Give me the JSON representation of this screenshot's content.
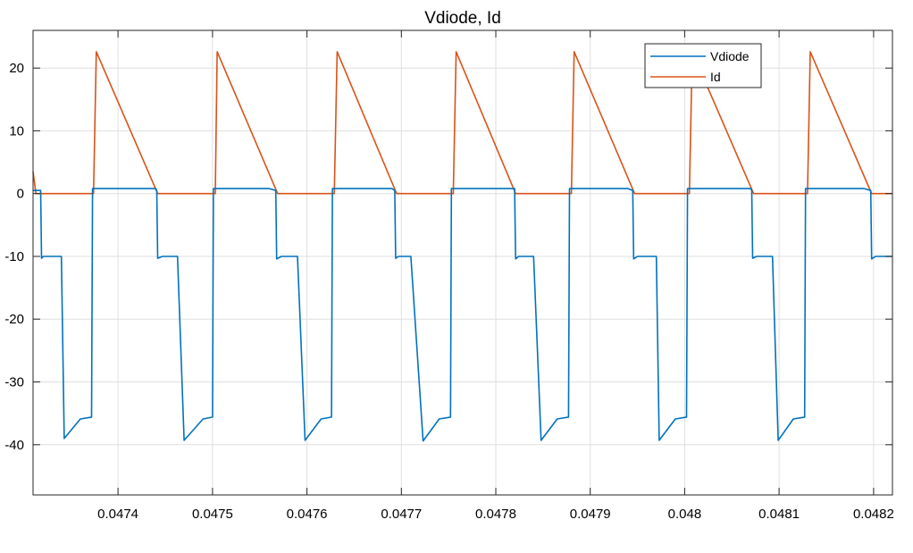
{
  "chart_data": {
    "type": "line",
    "title": "Vdiode, Id",
    "xlabel": "",
    "ylabel": "",
    "xlim": [
      0.04731,
      0.04822
    ],
    "ylim": [
      -48,
      26
    ],
    "grid": true,
    "legend_position": "top-right",
    "x_ticks": [
      0.0474,
      0.0475,
      0.0476,
      0.0477,
      0.0478,
      0.0479,
      0.048,
      0.0481,
      0.0482
    ],
    "x_tick_labels": [
      "0.0474",
      "0.0475",
      "0.0476",
      "0.0477",
      "0.0478",
      "0.0479",
      "0.048",
      "0.0481",
      "0.0482"
    ],
    "y_ticks": [
      20,
      10,
      0,
      -10,
      -20,
      -30,
      -40
    ],
    "y_tick_labels": [
      "20",
      "10",
      "0",
      "-10",
      "-20",
      "-30",
      "-40"
    ],
    "series": [
      {
        "name": "Vdiode",
        "color": "#0072BD",
        "x": [
          0.04731,
          0.047318,
          0.047319,
          0.047321,
          0.04734,
          0.047343,
          0.04736,
          0.047372,
          0.047373,
          0.047377,
          0.04744,
          0.047441,
          0.047442,
          0.047447,
          0.047463,
          0.04747,
          0.04749,
          0.0475,
          0.047501,
          0.047503,
          0.04756,
          0.047567,
          0.047568,
          0.047573,
          0.04759,
          0.047598,
          0.047615,
          0.047626,
          0.047627,
          0.047629,
          0.04769,
          0.047693,
          0.047694,
          0.047697,
          0.04771,
          0.047723,
          0.04774,
          0.047752,
          0.047753,
          0.047755,
          0.04782,
          0.04782,
          0.047821,
          0.047824,
          0.04784,
          0.047848,
          0.047865,
          0.047877,
          0.047878,
          0.04788,
          0.04794,
          0.047945,
          0.047946,
          0.04795,
          0.04797,
          0.047973,
          0.04799,
          0.048002,
          0.048003,
          0.048005,
          0.04807,
          0.048071,
          0.048072,
          0.048076,
          0.048093,
          0.048099,
          0.048115,
          0.048127,
          0.048128,
          0.04813,
          0.04819,
          0.048197,
          0.048198,
          0.048202,
          0.04822
        ],
        "y": [
          0.5,
          0.5,
          -10.3,
          -10.0,
          -10.0,
          -39.0,
          -35.9,
          -35.6,
          0.8,
          0.8,
          0.8,
          0.5,
          -10.3,
          -10.0,
          -10.0,
          -39.3,
          -35.9,
          -35.6,
          0.8,
          0.8,
          0.8,
          0.5,
          -10.4,
          -10.0,
          -10.0,
          -39.3,
          -35.9,
          -35.6,
          0.8,
          0.8,
          0.8,
          0.5,
          -10.3,
          -10.0,
          -10.0,
          -39.4,
          -35.9,
          -35.6,
          0.8,
          0.8,
          0.8,
          0.5,
          -10.4,
          -10.0,
          -10.0,
          -39.3,
          -35.9,
          -35.6,
          0.8,
          0.8,
          0.8,
          0.5,
          -10.4,
          -10.0,
          -10.0,
          -39.3,
          -35.9,
          -35.6,
          0.8,
          0.8,
          0.8,
          0.5,
          -10.3,
          -10.0,
          -10.0,
          -39.3,
          -35.9,
          -35.6,
          0.8,
          0.8,
          0.8,
          0.5,
          -10.4,
          -10.0,
          -10.0
        ]
      },
      {
        "name": "Id",
        "color": "#D95319",
        "x": [
          0.04731,
          0.047313,
          0.047374,
          0.047377,
          0.047442,
          0.047503,
          0.047505,
          0.047569,
          0.047629,
          0.047632,
          0.047695,
          0.047755,
          0.047758,
          0.047821,
          0.04788,
          0.047883,
          0.047947,
          0.048005,
          0.048008,
          0.048073,
          0.04813,
          0.048133,
          0.048198,
          0.04822
        ],
        "y": [
          3.5,
          0.0,
          0.0,
          22.6,
          0.0,
          0.0,
          22.6,
          0.0,
          0.0,
          22.6,
          0.0,
          0.0,
          22.6,
          0.0,
          0.0,
          22.6,
          0.0,
          0.0,
          22.6,
          0.0,
          0.0,
          22.6,
          0.0,
          0.0
        ]
      }
    ]
  }
}
